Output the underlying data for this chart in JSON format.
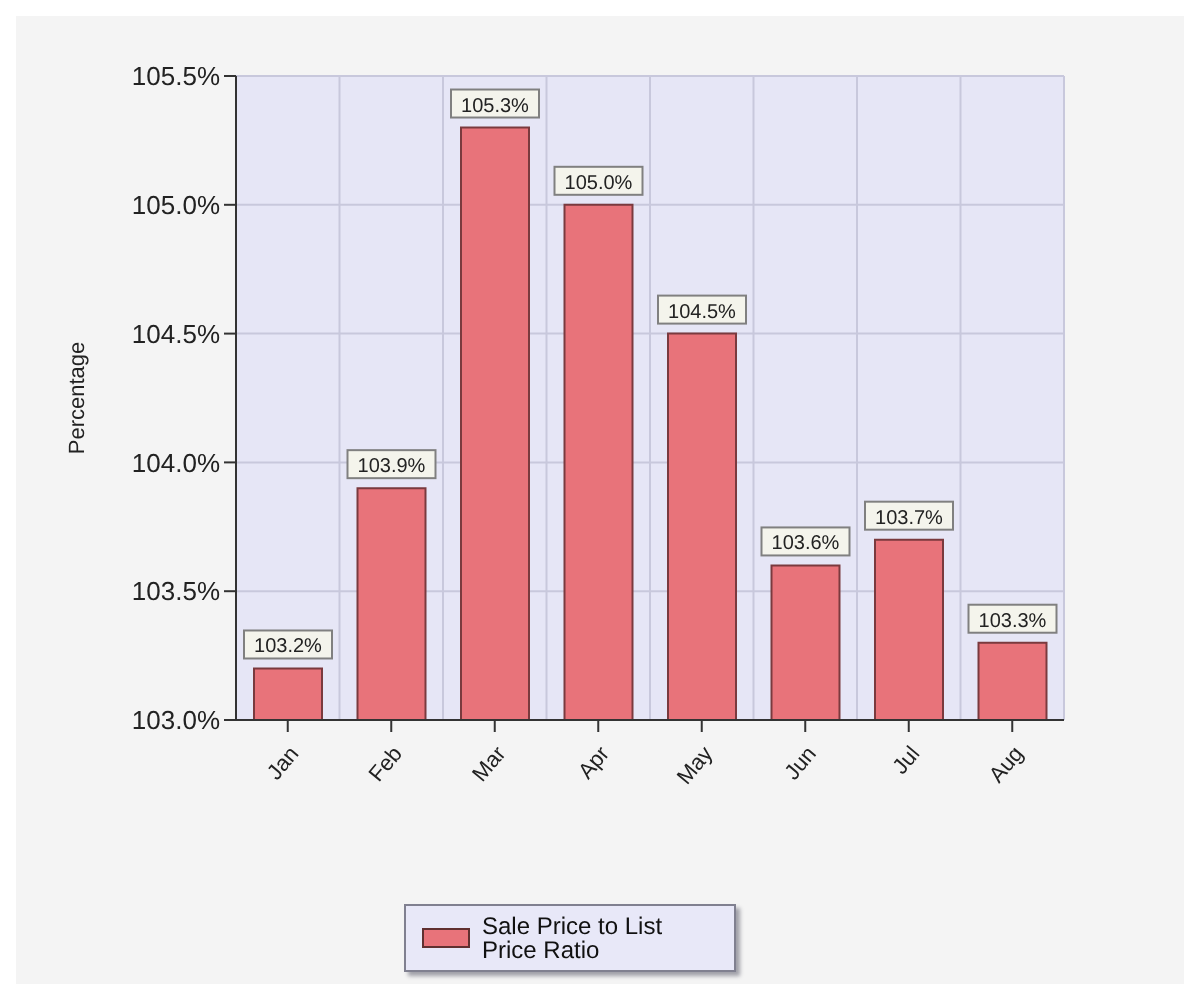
{
  "chart_data": {
    "type": "bar",
    "ylabel": "Percentage",
    "categories": [
      "Jan",
      "Feb",
      "Mar",
      "Apr",
      "May",
      "Jun",
      "Jul",
      "Aug"
    ],
    "series": [
      {
        "name": "Sale Price to List Price Ratio",
        "color": "#e8737a",
        "values": [
          103.2,
          103.9,
          105.3,
          105.0,
          104.5,
          103.6,
          103.7,
          103.3
        ],
        "value_labels": [
          "103.2%",
          "103.9%",
          "105.3%",
          "105.0%",
          "104.5%",
          "103.6%",
          "103.7%",
          "103.3%"
        ]
      }
    ],
    "ylim": [
      103.0,
      105.5
    ],
    "yticks": [
      {
        "value": 103.0,
        "label": "103.0%"
      },
      {
        "value": 103.5,
        "label": "103.5%"
      },
      {
        "value": 104.0,
        "label": "104.0%"
      },
      {
        "value": 104.5,
        "label": "104.5%"
      },
      {
        "value": 105.0,
        "label": "105.0%"
      },
      {
        "value": 105.5,
        "label": "105.5%"
      }
    ],
    "grid": true,
    "legend": "bottom"
  }
}
